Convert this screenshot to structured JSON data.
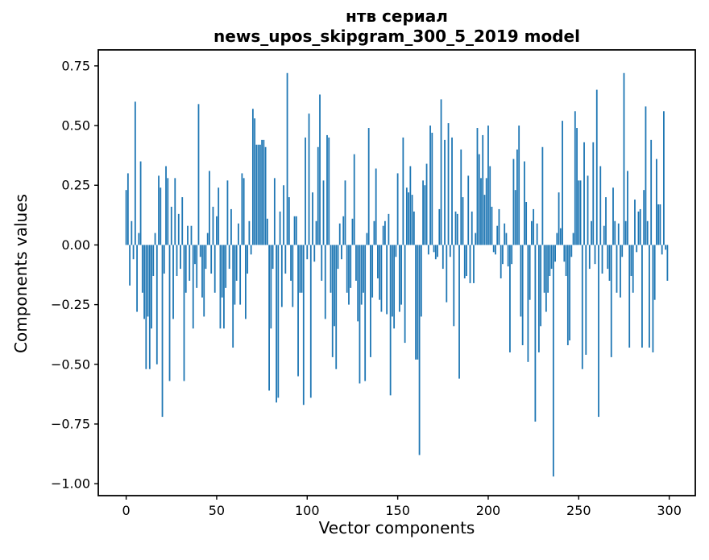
{
  "chart_data": {
    "type": "bar",
    "title_line1": "нтв сериал",
    "title_line2": "news_upos_skipgram_300_5_2019 model",
    "xlabel": "Vector components",
    "ylabel": "Components values",
    "bar_color": "#1f77b4",
    "axis_color": "#000000",
    "background_color": "#ffffff",
    "n_components": 300,
    "xlim": [
      -15.4,
      314.4
    ],
    "ylim": [
      -1.05,
      0.817
    ],
    "grid": false,
    "legend": null,
    "x_ticks": [
      {
        "v": 0,
        "label": "0"
      },
      {
        "v": 50,
        "label": "50"
      },
      {
        "v": 100,
        "label": "100"
      },
      {
        "v": 150,
        "label": "150"
      },
      {
        "v": 200,
        "label": "200"
      },
      {
        "v": 250,
        "label": "250"
      },
      {
        "v": 300,
        "label": "300"
      }
    ],
    "y_ticks": [
      {
        "v": 0.75,
        "label": "0.75"
      },
      {
        "v": 0.5,
        "label": "0.50"
      },
      {
        "v": 0.25,
        "label": "0.25"
      },
      {
        "v": 0.0,
        "label": "0.00"
      },
      {
        "v": -0.25,
        "label": "−0.25"
      },
      {
        "v": -0.5,
        "label": "−0.50"
      },
      {
        "v": -0.75,
        "label": "−0.75"
      },
      {
        "v": -1.0,
        "label": "−1.00"
      }
    ],
    "values": [
      0.23,
      0.3,
      -0.17,
      0.1,
      -0.06,
      0.6,
      -0.28,
      0.05,
      0.35,
      -0.2,
      -0.31,
      -0.52,
      -0.3,
      -0.52,
      -0.35,
      -0.13,
      0.05,
      -0.5,
      0.29,
      0.24,
      -0.72,
      -0.12,
      0.33,
      0.28,
      -0.57,
      0.16,
      -0.31,
      0.28,
      -0.13,
      0.13,
      -0.1,
      0.2,
      -0.57,
      -0.2,
      0.08,
      -0.15,
      0.08,
      -0.35,
      -0.08,
      -0.18,
      0.59,
      -0.05,
      -0.22,
      -0.3,
      -0.1,
      0.05,
      0.31,
      -0.12,
      0.16,
      -0.2,
      0.12,
      0.24,
      -0.35,
      -0.22,
      -0.35,
      -0.18,
      0.27,
      -0.1,
      0.15,
      -0.43,
      -0.25,
      -0.15,
      0.09,
      -0.25,
      0.3,
      0.28,
      -0.31,
      -0.12,
      0.1,
      -0.04,
      0.57,
      0.53,
      0.42,
      0.42,
      0.42,
      0.44,
      0.44,
      0.41,
      0.11,
      -0.61,
      -0.35,
      -0.1,
      0.28,
      -0.66,
      -0.64,
      0.14,
      -0.26,
      0.25,
      -0.12,
      0.72,
      0.2,
      -0.15,
      -0.26,
      0.12,
      0.12,
      -0.55,
      -0.2,
      -0.2,
      -0.67,
      0.45,
      -0.06,
      0.55,
      -0.64,
      0.22,
      -0.07,
      0.1,
      0.41,
      0.63,
      -0.15,
      0.27,
      -0.31,
      0.46,
      0.45,
      -0.2,
      -0.47,
      -0.34,
      -0.52,
      -0.1,
      0.09,
      -0.06,
      0.12,
      0.27,
      -0.2,
      -0.25,
      -0.18,
      0.11,
      0.38,
      -0.15,
      -0.32,
      -0.58,
      -0.25,
      -0.2,
      -0.57,
      0.05,
      0.49,
      -0.47,
      -0.22,
      0.1,
      0.32,
      -0.14,
      -0.23,
      -0.28,
      0.08,
      0.1,
      -0.29,
      0.13,
      -0.63,
      -0.3,
      -0.35,
      -0.05,
      0.3,
      -0.28,
      -0.25,
      0.45,
      -0.41,
      0.24,
      0.22,
      0.33,
      0.21,
      0.14,
      -0.48,
      -0.48,
      -0.88,
      -0.3,
      0.27,
      0.25,
      0.34,
      -0.04,
      0.5,
      0.47,
      -0.03,
      -0.06,
      -0.05,
      0.15,
      0.61,
      -0.1,
      0.44,
      -0.24,
      0.51,
      -0.05,
      0.45,
      -0.34,
      0.14,
      0.13,
      -0.56,
      0.4,
      0.2,
      -0.14,
      -0.13,
      0.29,
      -0.16,
      0.14,
      -0.16,
      0.05,
      0.49,
      0.38,
      0.28,
      0.46,
      0.21,
      0.28,
      0.5,
      0.33,
      0.16,
      -0.03,
      -0.04,
      0.08,
      0.15,
      -0.14,
      -0.08,
      0.09,
      0.05,
      -0.09,
      -0.45,
      -0.08,
      0.36,
      0.23,
      0.4,
      0.5,
      -0.3,
      -0.42,
      0.35,
      0.18,
      -0.49,
      -0.23,
      0.1,
      0.15,
      -0.74,
      0.09,
      -0.45,
      -0.34,
      0.41,
      -0.2,
      -0.28,
      -0.2,
      -0.13,
      -0.1,
      -0.97,
      -0.07,
      0.05,
      0.22,
      0.07,
      0.52,
      -0.07,
      -0.13,
      -0.42,
      -0.4,
      -0.05,
      0.05,
      0.56,
      0.49,
      0.27,
      0.27,
      -0.52,
      0.43,
      -0.46,
      0.29,
      -0.1,
      0.1,
      0.43,
      -0.08,
      0.65,
      -0.72,
      0.33,
      -0.12,
      0.08,
      0.2,
      -0.1,
      -0.15,
      -0.47,
      0.24,
      0.1,
      -0.2,
      0.09,
      -0.22,
      -0.05,
      0.72,
      0.1,
      0.31,
      -0.43,
      -0.13,
      -0.2,
      0.19,
      -0.03,
      0.14,
      0.15,
      -0.43,
      0.23,
      0.58,
      0.1,
      -0.43,
      0.44,
      -0.45,
      -0.23,
      0.36,
      0.17,
      0.17,
      -0.04,
      0.56,
      -0.02,
      -0.15
    ]
  }
}
